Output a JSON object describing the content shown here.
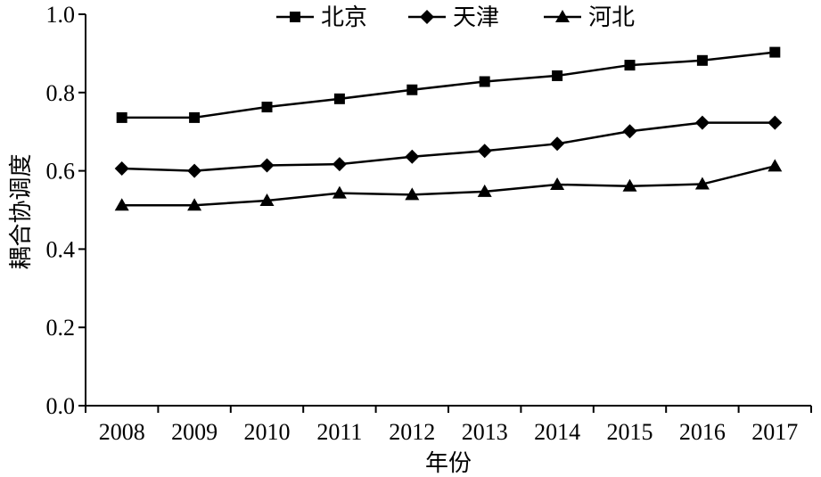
{
  "chart_data": {
    "type": "line",
    "xlabel": "年份",
    "ylabel": "耦合协调度",
    "ylim": [
      0,
      1.0
    ],
    "yticks": [
      "0.0",
      "0.2",
      "0.4",
      "0.6",
      "0.8",
      "1.0"
    ],
    "categories": [
      "2008",
      "2009",
      "2010",
      "2011",
      "2012",
      "2013",
      "2014",
      "2015",
      "2016",
      "2017"
    ],
    "grid": false,
    "legend_position": "top",
    "series": [
      {
        "name": "北京",
        "marker": "square",
        "values": [
          0.736,
          0.736,
          0.763,
          0.784,
          0.807,
          0.828,
          0.843,
          0.87,
          0.882,
          0.903
        ]
      },
      {
        "name": "天津",
        "marker": "diamond",
        "values": [
          0.606,
          0.6,
          0.614,
          0.617,
          0.636,
          0.651,
          0.669,
          0.701,
          0.723,
          0.723
        ]
      },
      {
        "name": "河北",
        "marker": "triangle",
        "values": [
          0.512,
          0.512,
          0.524,
          0.543,
          0.539,
          0.547,
          0.565,
          0.561,
          0.566,
          0.612
        ]
      }
    ]
  }
}
